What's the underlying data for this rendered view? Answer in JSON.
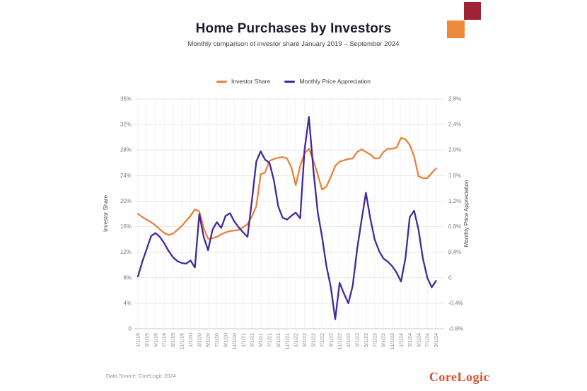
{
  "header": {
    "title": "Home Purchases by Investors",
    "subtitle": "Monthly comparison of investor share January 2019 – September 2024"
  },
  "decor": {
    "orange_square_color": "#ef8a3b",
    "dark_red_square_color": "#9e2433"
  },
  "legend": [
    {
      "label": "Investor Share",
      "color": "#e8823c"
    },
    {
      "label": "Monthly Price Appreciation",
      "color": "#44289b"
    }
  ],
  "chart_data": {
    "type": "line",
    "x_monthly_start": "1/1/19",
    "x_monthly_end": "9/1/24",
    "x_tick_labels": [
      "1/1/19",
      "3/1/19",
      "5/1/19",
      "7/1/19",
      "9/1/19",
      "11/1/19",
      "1/1/20",
      "3/1/20",
      "5/1/20",
      "7/1/20",
      "9/1/20",
      "11/1/20",
      "1/1/21",
      "3/1/21",
      "5/1/21",
      "7/1/21",
      "9/1/21",
      "11/1/21",
      "1/1/22",
      "3/1/22",
      "5/1/22",
      "7/1/22",
      "9/1/22",
      "11/1/22",
      "1/1/23",
      "3/1/23",
      "5/1/23",
      "7/1/23",
      "9/1/23",
      "11/1/23",
      "1/1/24",
      "3/1/24",
      "5/1/24",
      "7/1/24",
      "9/1/24"
    ],
    "left_axis": {
      "title": "Investor Share",
      "range": [
        0,
        36
      ],
      "grid": true,
      "ticks": [
        "36%",
        "32%",
        "28%",
        "24%",
        "20%",
        "16%",
        "12%",
        "8%",
        "4%",
        "0"
      ]
    },
    "right_axis": {
      "title": "Monthly Price Appreciation",
      "range": [
        -0.8,
        2.8
      ],
      "ticks": [
        "2.8%",
        "2.4%",
        "2.0%",
        "1.6%",
        "1.2%",
        "0.8%",
        "0.4%",
        "0",
        "-0.4%",
        "-0.8%"
      ]
    },
    "series": [
      {
        "name": "Investor Share",
        "axis": "left",
        "color": "#e8823c",
        "values": [
          18.0,
          17.5,
          17.1,
          16.7,
          16.2,
          15.6,
          15.0,
          14.7,
          14.9,
          15.5,
          16.1,
          16.9,
          17.7,
          18.7,
          18.4,
          15.8,
          14.1,
          14.2,
          14.4,
          14.8,
          15.1,
          15.3,
          15.4,
          15.5,
          15.9,
          16.4,
          17.6,
          19.2,
          24.2,
          24.5,
          26.3,
          26.6,
          26.8,
          26.9,
          26.7,
          25.3,
          22.5,
          25.5,
          27.5,
          28.2,
          26.4,
          24.2,
          21.8,
          22.3,
          23.8,
          25.5,
          26.2,
          26.4,
          26.6,
          26.7,
          27.7,
          28.1,
          27.7,
          27.3,
          26.7,
          26.7,
          27.7,
          28.2,
          28.2,
          28.4,
          29.9,
          29.7,
          28.8,
          27.0,
          23.9,
          23.6,
          23.6,
          24.4,
          25.1
        ]
      },
      {
        "name": "Monthly Price Appreciation",
        "axis": "right",
        "color": "#44289b",
        "values": [
          0.02,
          0.25,
          0.45,
          0.65,
          0.7,
          0.64,
          0.54,
          0.42,
          0.32,
          0.26,
          0.23,
          0.22,
          0.27,
          0.16,
          1.0,
          0.64,
          0.43,
          0.75,
          0.87,
          0.78,
          0.97,
          1.01,
          0.88,
          0.79,
          0.71,
          0.64,
          1.21,
          1.82,
          1.98,
          1.85,
          1.8,
          1.53,
          1.12,
          0.94,
          0.91,
          0.97,
          1.02,
          0.93,
          2.0,
          2.52,
          1.7,
          1.03,
          0.64,
          0.18,
          -0.15,
          -0.65,
          -0.08,
          -0.25,
          -0.4,
          -0.12,
          0.45,
          0.9,
          1.33,
          0.93,
          0.6,
          0.42,
          0.3,
          0.25,
          0.18,
          0.08,
          -0.06,
          0.3,
          0.95,
          1.05,
          0.75,
          0.3,
          0.0,
          -0.15,
          -0.05
        ]
      }
    ]
  },
  "footer": {
    "source": "Data Source: CoreLogic 2024",
    "logo_text": "CoreLogic",
    "logo_color": "#da4f2b"
  }
}
